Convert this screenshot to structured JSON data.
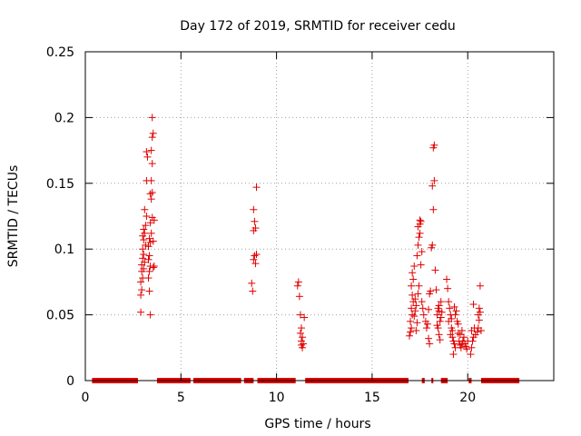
{
  "chart_data": {
    "type": "scatter",
    "title": "Day 172 of 2019, SRMTID for receiver cedu",
    "xlabel": "GPS time / hours",
    "ylabel": "SRMTID / TECUs",
    "xlim": [
      0,
      24.5
    ],
    "ylim": [
      0,
      0.25
    ],
    "x_ticks": [
      0,
      5,
      10,
      15,
      20
    ],
    "x_tick_labels": [
      "0",
      "5",
      "10",
      "15",
      "20"
    ],
    "y_ticks": [
      0,
      0.05,
      0.1,
      0.15,
      0.2,
      0.25
    ],
    "y_tick_labels": [
      "0",
      "0.05",
      "0.1",
      "0.15",
      "0.2",
      "0.25"
    ],
    "grid": true,
    "marker": "+",
    "color": "#e00000",
    "zero_segments": [
      [
        0.35,
        2.75
      ],
      [
        3.75,
        5.5
      ],
      [
        5.65,
        8.15
      ],
      [
        8.3,
        8.8
      ],
      [
        9.0,
        11.0
      ],
      [
        11.5,
        16.9
      ],
      [
        17.6,
        17.75
      ],
      [
        18.1,
        18.2
      ],
      [
        18.6,
        18.95
      ],
      [
        20.05,
        20.2
      ],
      [
        20.7,
        22.7
      ]
    ],
    "series": [
      {
        "name": "SRMTID",
        "points": [
          [
            2.9,
            0.052
          ],
          [
            2.9,
            0.065
          ],
          [
            2.95,
            0.069
          ],
          [
            2.9,
            0.075
          ],
          [
            3.0,
            0.078
          ],
          [
            2.95,
            0.083
          ],
          [
            3.05,
            0.085
          ],
          [
            2.95,
            0.088
          ],
          [
            3.1,
            0.09
          ],
          [
            3.0,
            0.093
          ],
          [
            3.05,
            0.096
          ],
          [
            3.0,
            0.1
          ],
          [
            3.15,
            0.103
          ],
          [
            3.05,
            0.107
          ],
          [
            3.0,
            0.11
          ],
          [
            3.1,
            0.112
          ],
          [
            3.05,
            0.115
          ],
          [
            3.15,
            0.118
          ],
          [
            3.2,
            0.125
          ],
          [
            3.1,
            0.13
          ],
          [
            3.2,
            0.152
          ],
          [
            3.25,
            0.17
          ],
          [
            3.2,
            0.174
          ],
          [
            3.3,
            0.078
          ],
          [
            3.35,
            0.083
          ],
          [
            3.4,
            0.087
          ],
          [
            3.3,
            0.092
          ],
          [
            3.35,
            0.095
          ],
          [
            3.3,
            0.102
          ],
          [
            3.4,
            0.105
          ],
          [
            3.35,
            0.108
          ],
          [
            3.45,
            0.112
          ],
          [
            3.4,
            0.12
          ],
          [
            3.5,
            0.124
          ],
          [
            3.45,
            0.138
          ],
          [
            3.4,
            0.142
          ],
          [
            3.5,
            0.143
          ],
          [
            3.45,
            0.152
          ],
          [
            3.5,
            0.165
          ],
          [
            3.45,
            0.175
          ],
          [
            3.5,
            0.185
          ],
          [
            3.55,
            0.188
          ],
          [
            3.5,
            0.2
          ],
          [
            3.4,
            0.05
          ],
          [
            3.35,
            0.068
          ],
          [
            3.55,
            0.086
          ],
          [
            3.6,
            0.087
          ],
          [
            3.55,
            0.106
          ],
          [
            3.6,
            0.122
          ],
          [
            8.7,
            0.074
          ],
          [
            8.75,
            0.068
          ],
          [
            8.8,
            0.092
          ],
          [
            8.85,
            0.095
          ],
          [
            8.8,
            0.114
          ],
          [
            8.9,
            0.116
          ],
          [
            8.85,
            0.121
          ],
          [
            8.8,
            0.13
          ],
          [
            8.95,
            0.147
          ],
          [
            8.9,
            0.089
          ],
          [
            8.95,
            0.096
          ],
          [
            11.1,
            0.072
          ],
          [
            11.15,
            0.075
          ],
          [
            11.2,
            0.064
          ],
          [
            11.25,
            0.05
          ],
          [
            11.3,
            0.04
          ],
          [
            11.25,
            0.036
          ],
          [
            11.35,
            0.033
          ],
          [
            11.3,
            0.03
          ],
          [
            11.4,
            0.028
          ],
          [
            11.35,
            0.025
          ],
          [
            11.45,
            0.048
          ],
          [
            11.3,
            0.027
          ],
          [
            16.95,
            0.034
          ],
          [
            17.0,
            0.037
          ],
          [
            17.05,
            0.04
          ],
          [
            17.0,
            0.045
          ],
          [
            17.1,
            0.05
          ],
          [
            17.05,
            0.055
          ],
          [
            17.15,
            0.06
          ],
          [
            17.1,
            0.065
          ],
          [
            17.05,
            0.072
          ],
          [
            17.15,
            0.077
          ],
          [
            17.1,
            0.082
          ],
          [
            17.2,
            0.087
          ],
          [
            17.2,
            0.049
          ],
          [
            17.25,
            0.053
          ],
          [
            17.3,
            0.057
          ],
          [
            17.25,
            0.062
          ],
          [
            17.35,
            0.044
          ],
          [
            17.3,
            0.038
          ],
          [
            17.4,
            0.066
          ],
          [
            17.45,
            0.072
          ],
          [
            17.35,
            0.095
          ],
          [
            17.4,
            0.103
          ],
          [
            17.45,
            0.109
          ],
          [
            17.5,
            0.112
          ],
          [
            17.4,
            0.117
          ],
          [
            17.5,
            0.119
          ],
          [
            17.55,
            0.121
          ],
          [
            17.5,
            0.122
          ],
          [
            17.6,
            0.098
          ],
          [
            17.55,
            0.088
          ],
          [
            17.6,
            0.06
          ],
          [
            17.65,
            0.055
          ],
          [
            17.7,
            0.05
          ],
          [
            17.8,
            0.045
          ],
          [
            17.85,
            0.04
          ],
          [
            17.9,
            0.043
          ],
          [
            17.95,
            0.032
          ],
          [
            18.0,
            0.028
          ],
          [
            18.0,
            0.066
          ],
          [
            18.05,
            0.068
          ],
          [
            17.95,
            0.054
          ],
          [
            18.1,
            0.101
          ],
          [
            18.15,
            0.103
          ],
          [
            18.2,
            0.13
          ],
          [
            18.15,
            0.148
          ],
          [
            18.25,
            0.152
          ],
          [
            18.2,
            0.177
          ],
          [
            18.25,
            0.179
          ],
          [
            18.3,
            0.084
          ],
          [
            18.35,
            0.069
          ],
          [
            18.4,
            0.05
          ],
          [
            18.45,
            0.055
          ],
          [
            18.5,
            0.053
          ],
          [
            18.5,
            0.057
          ],
          [
            18.55,
            0.045
          ],
          [
            18.45,
            0.04
          ],
          [
            18.5,
            0.035
          ],
          [
            18.6,
            0.048
          ],
          [
            18.55,
            0.031
          ],
          [
            18.4,
            0.042
          ],
          [
            18.65,
            0.052
          ],
          [
            18.6,
            0.06
          ],
          [
            18.9,
            0.077
          ],
          [
            18.95,
            0.07
          ],
          [
            19.0,
            0.06
          ],
          [
            19.05,
            0.055
          ],
          [
            19.1,
            0.05
          ],
          [
            19.0,
            0.045
          ],
          [
            19.15,
            0.04
          ],
          [
            19.1,
            0.035
          ],
          [
            19.2,
            0.033
          ],
          [
            19.25,
            0.03
          ],
          [
            19.3,
            0.028
          ],
          [
            19.2,
            0.038
          ],
          [
            19.35,
            0.025
          ],
          [
            19.25,
            0.02
          ],
          [
            19.15,
            0.047
          ],
          [
            19.3,
            0.056
          ],
          [
            19.4,
            0.053
          ],
          [
            19.35,
            0.05
          ],
          [
            19.45,
            0.045
          ],
          [
            19.5,
            0.043
          ],
          [
            19.5,
            0.036
          ],
          [
            19.55,
            0.03
          ],
          [
            19.6,
            0.027
          ],
          [
            19.65,
            0.025
          ],
          [
            19.7,
            0.028
          ],
          [
            19.75,
            0.03
          ],
          [
            19.8,
            0.033
          ],
          [
            19.85,
            0.028
          ],
          [
            19.9,
            0.026
          ],
          [
            19.95,
            0.024
          ],
          [
            20.0,
            0.03
          ],
          [
            19.6,
            0.035
          ],
          [
            19.7,
            0.038
          ],
          [
            20.15,
            0.02
          ],
          [
            20.2,
            0.025
          ],
          [
            20.25,
            0.03
          ],
          [
            20.3,
            0.033
          ],
          [
            20.2,
            0.038
          ],
          [
            20.35,
            0.04
          ],
          [
            20.3,
            0.058
          ],
          [
            20.4,
            0.035
          ],
          [
            20.5,
            0.037
          ],
          [
            20.55,
            0.04
          ],
          [
            20.6,
            0.046
          ],
          [
            20.55,
            0.05
          ],
          [
            20.65,
            0.052
          ],
          [
            20.6,
            0.055
          ],
          [
            20.65,
            0.072
          ],
          [
            20.7,
            0.038
          ]
        ]
      }
    ]
  }
}
